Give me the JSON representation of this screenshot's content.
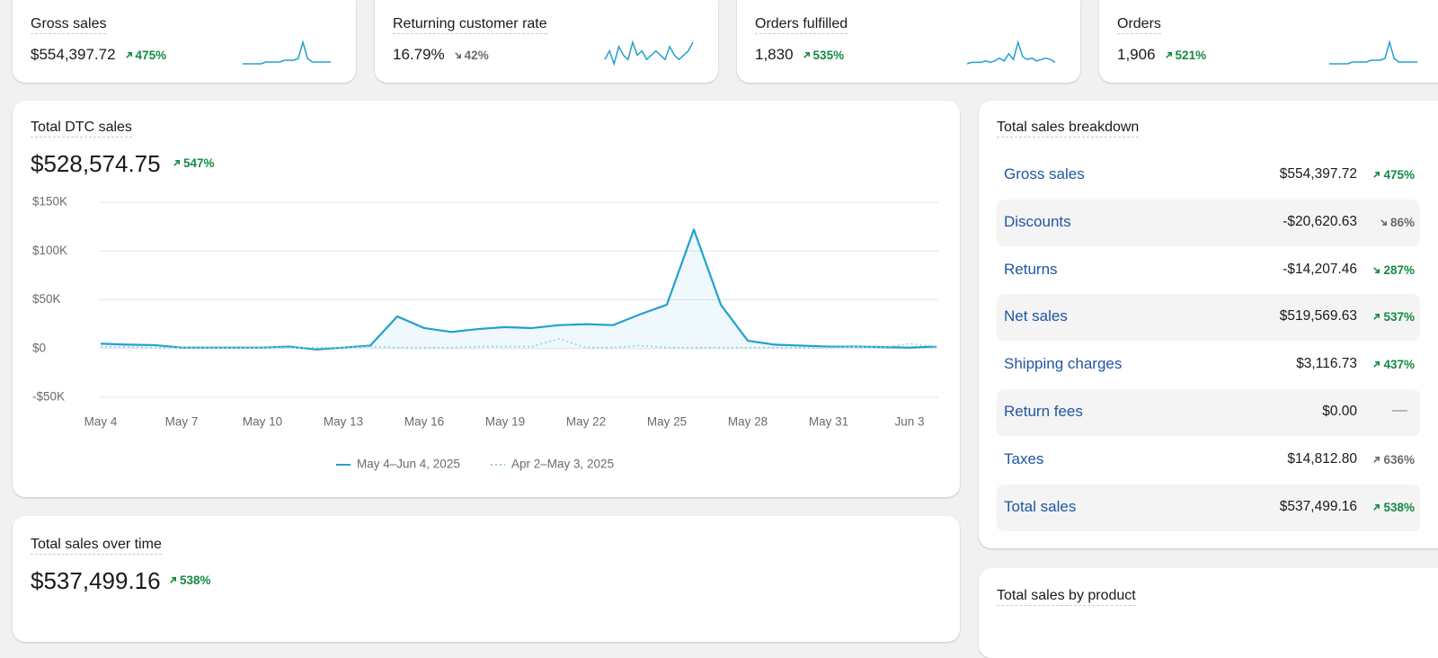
{
  "kpis": [
    {
      "title": "Gross sales",
      "value": "$554,397.72",
      "change": "475%",
      "trend": "up",
      "tone": "positive",
      "sparkline": [
        2,
        2,
        2,
        2,
        2,
        3,
        3,
        3,
        3,
        4,
        4,
        4,
        5,
        14,
        5,
        3,
        3,
        3,
        3,
        3
      ]
    },
    {
      "title": "Returning customer rate",
      "value": "16.79%",
      "change": "42%",
      "trend": "down",
      "tone": "neutral",
      "sparkline": [
        5,
        7,
        4,
        8,
        6,
        5,
        9,
        6,
        7,
        5,
        6,
        7,
        6,
        5,
        8,
        6,
        5,
        6,
        7,
        9
      ]
    },
    {
      "title": "Orders fulfilled",
      "value": "1,830",
      "change": "535%",
      "trend": "up",
      "tone": "positive",
      "sparkline": [
        1,
        2,
        2,
        2,
        3,
        2,
        3,
        5,
        3,
        8,
        4,
        16,
        6,
        4,
        5,
        3,
        4,
        5,
        4,
        2
      ]
    },
    {
      "title": "Orders",
      "value": "1,906",
      "change": "521%",
      "trend": "up",
      "tone": "positive",
      "sparkline": [
        2,
        2,
        2,
        2,
        2,
        3,
        3,
        3,
        3,
        4,
        4,
        4,
        5,
        14,
        5,
        3,
        3,
        3,
        3,
        3
      ]
    }
  ],
  "chart_data": {
    "type": "line",
    "title": "Total DTC sales",
    "total": "$528,574.75",
    "change": "547%",
    "trend": "up",
    "tone": "positive",
    "categories": [
      "May 4",
      null,
      null,
      "May 7",
      null,
      null,
      "May 10",
      null,
      null,
      "May 13",
      null,
      null,
      "May 16",
      null,
      null,
      "May 19",
      null,
      null,
      "May 22",
      null,
      null,
      "May 25",
      null,
      null,
      "May 28",
      null,
      null,
      "May 31",
      null,
      null,
      "Jun 3",
      null
    ],
    "series": [
      {
        "name": "May 4–Jun 4, 2025",
        "color": "#23a0cf",
        "dashed": false,
        "values": [
          5000,
          4000,
          3500,
          1000,
          1000,
          1000,
          1000,
          2000,
          -1000,
          1000,
          3000,
          33000,
          21000,
          17000,
          20000,
          22000,
          21000,
          24000,
          25000,
          24000,
          35000,
          45000,
          122000,
          45000,
          8000,
          4000,
          3000,
          2000,
          2000,
          1500,
          1000,
          2000
        ]
      },
      {
        "name": "Apr 2–May 3, 2025",
        "color": "#8fd2e4",
        "dashed": true,
        "values": [
          2000,
          1500,
          1000,
          1000,
          1000,
          1000,
          1000,
          1000,
          1000,
          1000,
          2000,
          1000,
          1000,
          1000,
          2000,
          2000,
          2000,
          10000,
          1000,
          1000,
          3000,
          1000,
          1000,
          1000,
          1000,
          1000,
          1000,
          1000,
          2000,
          1000,
          5000,
          2000
        ]
      }
    ],
    "ylim": [
      -50000,
      150000
    ],
    "yticks": [
      {
        "value": -50000,
        "label": "-$50K"
      },
      {
        "value": 0,
        "label": "$0"
      },
      {
        "value": 50000,
        "label": "$50K"
      },
      {
        "value": 100000,
        "label": "$100K"
      },
      {
        "value": 150000,
        "label": "$150K"
      }
    ],
    "grid": true
  },
  "breakdown": {
    "title": "Total sales breakdown",
    "rows": [
      {
        "label": "Gross sales",
        "value": "$554,397.72",
        "change": "475%",
        "trend": "up",
        "tone": "positive"
      },
      {
        "label": "Discounts",
        "value": "-$20,620.63",
        "change": "86%",
        "trend": "down",
        "tone": "neutral"
      },
      {
        "label": "Returns",
        "value": "-$14,207.46",
        "change": "287%",
        "trend": "down",
        "tone": "positive"
      },
      {
        "label": "Net sales",
        "value": "$519,569.63",
        "change": "537%",
        "trend": "up",
        "tone": "positive"
      },
      {
        "label": "Shipping charges",
        "value": "$3,116.73",
        "change": "437%",
        "trend": "up",
        "tone": "positive"
      },
      {
        "label": "Return fees",
        "value": "$0.00",
        "change": "—",
        "trend": "none",
        "tone": "neutral"
      },
      {
        "label": "Taxes",
        "value": "$14,812.80",
        "change": "636%",
        "trend": "up",
        "tone": "neutral"
      },
      {
        "label": "Total sales",
        "value": "$537,499.16",
        "change": "538%",
        "trend": "up",
        "tone": "positive"
      }
    ]
  },
  "over_time": {
    "title": "Total sales over time",
    "total": "$537,499.16",
    "change": "538%",
    "trend": "up",
    "tone": "positive"
  },
  "by_product": {
    "title": "Total sales by product"
  }
}
